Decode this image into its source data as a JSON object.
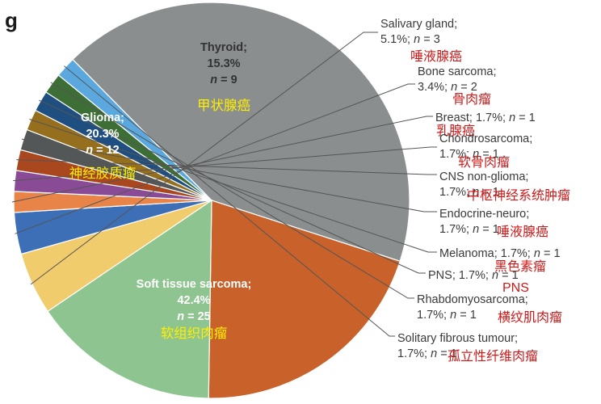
{
  "panel_label": "g",
  "colors": {
    "soft_tissue": "#8a8e8f",
    "glioma": "#c8622a",
    "thyroid": "#8ec48f",
    "salivary": "#f1cc6d",
    "bone": "#3d6fb7",
    "breast": "#e88447",
    "chondro": "#8a4b96",
    "cns": "#a9471f",
    "endocrine": "#545757",
    "melanoma": "#956f1e",
    "pns": "#1f4f80",
    "rhabdo": "#3d6e35",
    "solitary": "#5aa8de",
    "annot_red": "#d01818",
    "annot_yellow": "#ffef00"
  },
  "chart_data": {
    "type": "pie",
    "title": "",
    "slices": [
      {
        "key": "soft_tissue",
        "name": "Soft tissue sarcoma",
        "percent": 42.4,
        "n": 25,
        "line1": "Soft tissue sarcoma;",
        "line2": "42.4%",
        "line3": "n = 25",
        "cn": "软组织肉瘤"
      },
      {
        "key": "glioma",
        "name": "Glioma",
        "percent": 20.3,
        "n": 12,
        "line1": "Glioma;",
        "line2": "20.3%",
        "line3": "n = 12",
        "cn": "神经胶质瘤"
      },
      {
        "key": "thyroid",
        "name": "Thyroid",
        "percent": 15.3,
        "n": 9,
        "line1": "Thyroid;",
        "line2": "15.3%",
        "line3": "n = 9",
        "cn": "甲状腺癌"
      },
      {
        "key": "salivary",
        "name": "Salivary gland",
        "percent": 5.1,
        "n": 3,
        "line1": "Salivary gland;",
        "line2": "5.1%; n = 3",
        "cn": "唾液腺癌"
      },
      {
        "key": "bone",
        "name": "Bone sarcoma",
        "percent": 3.4,
        "n": 2,
        "line1": "Bone sarcoma;",
        "line2": "3.4%; n = 2",
        "cn": "骨肉瘤"
      },
      {
        "key": "breast",
        "name": "Breast",
        "percent": 1.7,
        "n": 1,
        "line1": "Breast; 1.7%; n = 1",
        "cn": "乳腺癌"
      },
      {
        "key": "chondro",
        "name": "Chondrosarcoma",
        "percent": 1.7,
        "n": 1,
        "line1": "Chondrosarcoma;",
        "line2": "1.7%; n = 1",
        "cn": "软骨肉瘤"
      },
      {
        "key": "cns",
        "name": "CNS non-glioma",
        "percent": 1.7,
        "n": 1,
        "line1": "CNS non-glioma;",
        "line2": "1.7%; n = 1",
        "cn": "中枢神经系统肿瘤"
      },
      {
        "key": "endocrine",
        "name": "Endocrine-neuro",
        "percent": 1.7,
        "n": 1,
        "line1": "Endocrine-neuro;",
        "line2": "1.7%; n = 1",
        "cn": "唾液腺癌"
      },
      {
        "key": "melanoma",
        "name": "Melanoma",
        "percent": 1.7,
        "n": 1,
        "line1": "Melanoma; 1.7%; n = 1",
        "cn": "黑色素瘤"
      },
      {
        "key": "pns",
        "name": "PNS",
        "percent": 1.7,
        "n": 1,
        "line1": "PNS; 1.7%; n = 1",
        "cn": "PNS"
      },
      {
        "key": "rhabdo",
        "name": "Rhabdomyosarcoma",
        "percent": 1.7,
        "n": 1,
        "line1": "Rhabdomyosarcoma;",
        "line2": "1.7%; n = 1",
        "cn": "横纹肌肉瘤"
      },
      {
        "key": "solitary",
        "name": "Solitary fibrous tumour",
        "percent": 1.7,
        "n": 1,
        "line1": "Solitary fibrous tumour;",
        "line2": "1.7%; n = 1",
        "cn": "孤立性纤维肉瘤"
      }
    ]
  }
}
